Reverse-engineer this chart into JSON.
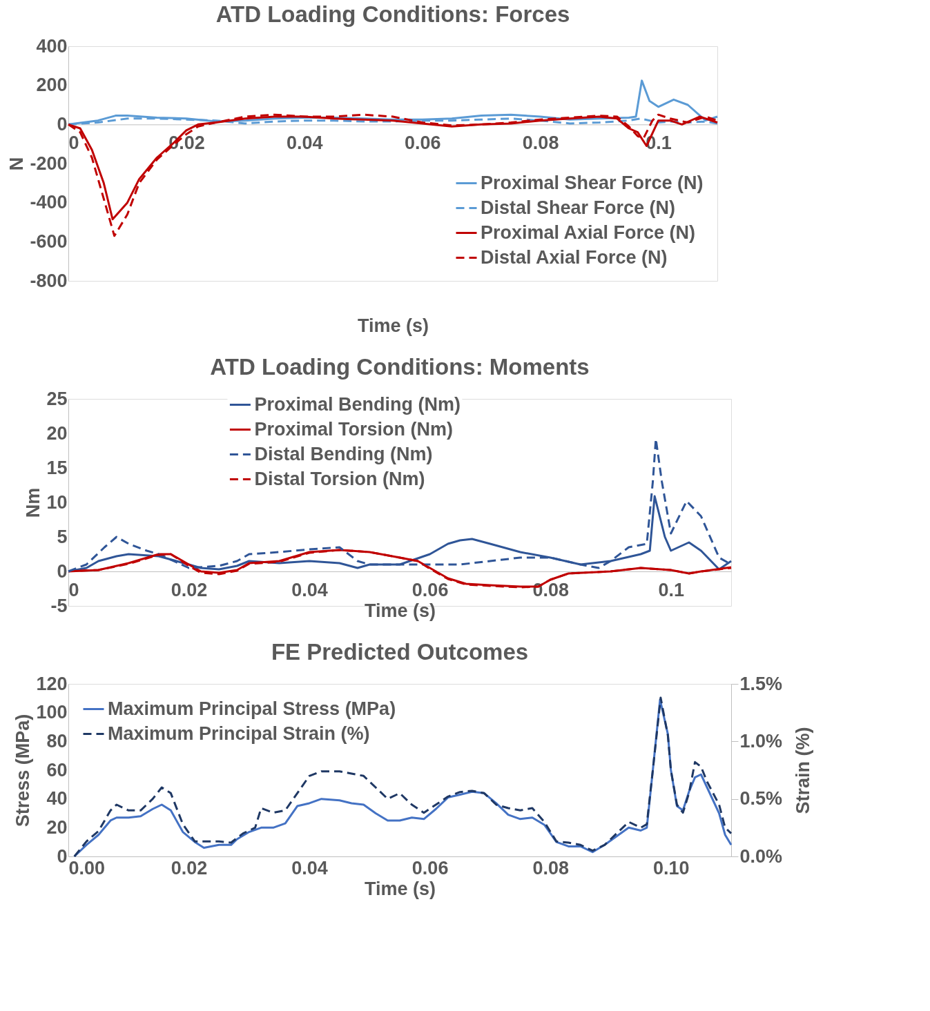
{
  "chart_data": [
    {
      "type": "line",
      "title": "ATD Loading Conditions: Forces",
      "xlabel": "Time (s)",
      "ylabel": "N",
      "xlim": [
        0,
        0.11
      ],
      "xticks": [
        0,
        0.02,
        0.04,
        0.06,
        0.08,
        0.1
      ],
      "ylim": [
        -800,
        400
      ],
      "yticks": [
        -800,
        -600,
        -400,
        -200,
        0,
        200,
        400
      ],
      "legend": "bottom right",
      "series": [
        {
          "name": "Proximal Shear Force (N)",
          "color": "#5b9bd5",
          "line_style": "solid",
          "x": [
            0,
            0.005,
            0.008,
            0.01,
            0.015,
            0.02,
            0.025,
            0.03,
            0.035,
            0.04,
            0.045,
            0.05,
            0.055,
            0.06,
            0.065,
            0.07,
            0.075,
            0.08,
            0.085,
            0.09,
            0.095,
            0.0962,
            0.0972,
            0.0985,
            0.1,
            0.1026,
            0.105,
            0.108,
            0.11
          ],
          "values": [
            0,
            20,
            45,
            45,
            35,
            30,
            15,
            20,
            30,
            35,
            35,
            30,
            25,
            25,
            30,
            45,
            50,
            40,
            25,
            30,
            35,
            40,
            224,
            120,
            90,
            127,
            100,
            20,
            40
          ]
        },
        {
          "name": "Distal Shear Force (N)",
          "color": "#5b9bd5",
          "line_style": "dashed",
          "x": [
            0,
            0.005,
            0.01,
            0.015,
            0.02,
            0.025,
            0.03,
            0.035,
            0.04,
            0.045,
            0.05,
            0.055,
            0.06,
            0.065,
            0.07,
            0.075,
            0.08,
            0.085,
            0.09,
            0.095,
            0.097,
            0.1,
            0.102,
            0.105,
            0.108,
            0.11
          ],
          "values": [
            0,
            10,
            30,
            30,
            25,
            20,
            5,
            15,
            20,
            20,
            15,
            15,
            20,
            20,
            25,
            30,
            20,
            5,
            10,
            20,
            30,
            10,
            15,
            10,
            15,
            5
          ]
        },
        {
          "name": "Proximal Axial Force (N)",
          "color": "#c00000",
          "line_style": "solid",
          "x": [
            0,
            0.002,
            0.004,
            0.006,
            0.0075,
            0.01,
            0.012,
            0.015,
            0.018,
            0.02,
            0.022,
            0.025,
            0.03,
            0.035,
            0.04,
            0.045,
            0.05,
            0.055,
            0.06,
            0.065,
            0.07,
            0.075,
            0.08,
            0.085,
            0.09,
            0.093,
            0.095,
            0.0965,
            0.098,
            0.1,
            0.102,
            0.104,
            0.107,
            0.11
          ],
          "values": [
            0,
            -20,
            -130,
            -300,
            -485,
            -400,
            -280,
            -170,
            -90,
            -30,
            0,
            10,
            30,
            40,
            40,
            30,
            25,
            20,
            5,
            -10,
            0,
            5,
            20,
            30,
            40,
            30,
            -20,
            -40,
            -110,
            20,
            20,
            0,
            40,
            10
          ]
        },
        {
          "name": "Distal Axial Force (N)",
          "color": "#c00000",
          "line_style": "dashed",
          "x": [
            0,
            0.002,
            0.004,
            0.006,
            0.0078,
            0.01,
            0.012,
            0.015,
            0.018,
            0.02,
            0.022,
            0.025,
            0.03,
            0.035,
            0.04,
            0.045,
            0.05,
            0.055,
            0.06,
            0.065,
            0.07,
            0.075,
            0.08,
            0.085,
            0.09,
            0.093,
            0.095,
            0.0965,
            0.0975,
            0.099,
            0.1,
            0.102,
            0.105,
            0.108,
            0.11
          ],
          "values": [
            0,
            -40,
            -170,
            -380,
            -570,
            -460,
            -300,
            -180,
            -100,
            -50,
            -10,
            10,
            40,
            50,
            40,
            40,
            50,
            40,
            10,
            -5,
            0,
            10,
            25,
            35,
            45,
            40,
            -10,
            -60,
            -70,
            20,
            50,
            30,
            10,
            40,
            20
          ]
        }
      ]
    },
    {
      "type": "line",
      "title": "ATD Loading Conditions: Moments",
      "xlabel": "Time (s)",
      "ylabel": "Nm",
      "xlim": [
        0,
        0.11
      ],
      "xticks": [
        0,
        0.02,
        0.04,
        0.06,
        0.08,
        0.1
      ],
      "ylim": [
        -5,
        25
      ],
      "yticks": [
        -5,
        0,
        5,
        10,
        15,
        20,
        25
      ],
      "legend": "top",
      "series": [
        {
          "name": "Proximal Bending (Nm)",
          "color": "#2f5597",
          "line_style": "solid",
          "x": [
            0,
            0.003,
            0.005,
            0.008,
            0.01,
            0.015,
            0.02,
            0.022,
            0.025,
            0.028,
            0.03,
            0.035,
            0.04,
            0.045,
            0.048,
            0.05,
            0.055,
            0.06,
            0.063,
            0.065,
            0.067,
            0.07,
            0.075,
            0.08,
            0.085,
            0.09,
            0.095,
            0.0965,
            0.0973,
            0.099,
            0.1,
            0.103,
            0.105,
            0.108,
            0.11
          ],
          "values": [
            0,
            0.5,
            1.5,
            2.2,
            2.5,
            2.2,
            1,
            0.5,
            0.3,
            0.8,
            1.5,
            1.2,
            1.5,
            1.2,
            0.5,
            1,
            1,
            2.5,
            4,
            4.5,
            4.7,
            4,
            2.8,
            2,
            1,
            1.5,
            2.5,
            3,
            10.9,
            5,
            3,
            4.2,
            3,
            0.3,
            1.5
          ]
        },
        {
          "name": "Proximal Torsion (Nm)",
          "color": "#c00000",
          "line_style": "solid",
          "x": [
            0,
            0.005,
            0.01,
            0.015,
            0.017,
            0.02,
            0.022,
            0.025,
            0.028,
            0.03,
            0.035,
            0.04,
            0.045,
            0.05,
            0.055,
            0.058,
            0.06,
            0.063,
            0.066,
            0.07,
            0.075,
            0.078,
            0.08,
            0.083,
            0.09,
            0.095,
            0.1,
            0.103,
            0.105,
            0.11
          ],
          "values": [
            0,
            0.2,
            1.2,
            2.5,
            2.5,
            1,
            0,
            -0.2,
            0.2,
            1.2,
            1.5,
            2.8,
            3.1,
            2.8,
            2,
            1.5,
            0.5,
            -1,
            -1.8,
            -2,
            -2.2,
            -2.2,
            -1.2,
            -0.3,
            0,
            0.5,
            0.2,
            -0.3,
            0,
            0.6
          ]
        },
        {
          "name": "Distal Bending  (Nm)",
          "color": "#2f5597",
          "line_style": "dashed",
          "x": [
            0,
            0.003,
            0.006,
            0.008,
            0.01,
            0.013,
            0.015,
            0.02,
            0.025,
            0.028,
            0.03,
            0.035,
            0.04,
            0.045,
            0.048,
            0.05,
            0.055,
            0.06,
            0.065,
            0.07,
            0.075,
            0.08,
            0.085,
            0.088,
            0.09,
            0.093,
            0.096,
            0.097,
            0.0975,
            0.0985,
            0.1,
            0.1026,
            0.105,
            0.108,
            0.11
          ],
          "values": [
            0,
            1,
            3.5,
            5,
            4,
            3,
            2.5,
            0.5,
            0.8,
            1.5,
            2.5,
            2.8,
            3.2,
            3.5,
            1.5,
            1,
            1,
            1,
            1,
            1.5,
            2,
            2,
            1,
            0.5,
            1.5,
            3.5,
            4,
            13,
            19.2,
            13,
            5.5,
            10.2,
            8,
            2,
            1
          ]
        },
        {
          "name": "Distal Torsion (Nm)",
          "color": "#c00000",
          "line_style": "dashed",
          "x": [
            0.002,
            0.005,
            0.01,
            0.015,
            0.017,
            0.02,
            0.022,
            0.025,
            0.028,
            0.03,
            0.035,
            0.04,
            0.045,
            0.05,
            0.055,
            0.058,
            0.06,
            0.063,
            0.066,
            0.07,
            0.075,
            0.078,
            0.08,
            0.083,
            0.09,
            0.095,
            0.1,
            0.103,
            0.105,
            0.11
          ],
          "values": [
            0.1,
            0.2,
            1.1,
            2.4,
            2.5,
            0.8,
            -0.2,
            -0.4,
            0.1,
            1.1,
            1.4,
            2.7,
            3.1,
            2.8,
            2,
            1.5,
            0.4,
            -1.1,
            -1.9,
            -2.1,
            -2.3,
            -2.2,
            -1.2,
            -0.3,
            0,
            0.5,
            0.2,
            -0.3,
            0,
            0.5
          ]
        }
      ]
    },
    {
      "type": "line",
      "title": "FE Predicted Outcomes",
      "xlabel": "Time (s)",
      "ylabel": "Stress (MPa)",
      "y2label": "Strain (%)",
      "xlim": [
        0,
        0.11
      ],
      "xticks": [
        {
          "value": 0,
          "label": "0.00"
        },
        {
          "value": 0.02,
          "label": "0.02"
        },
        {
          "value": 0.04,
          "label": "0.04"
        },
        {
          "value": 0.06,
          "label": "0.06"
        },
        {
          "value": 0.08,
          "label": "0.08"
        },
        {
          "value": 0.1,
          "label": "0.10"
        }
      ],
      "ylim": [
        0,
        120
      ],
      "yticks": [
        0,
        20,
        40,
        60,
        80,
        100,
        120
      ],
      "y2lim": [
        0,
        1.5
      ],
      "y2ticks": [
        {
          "value": 0,
          "label": "0.0%"
        },
        {
          "value": 0.5,
          "label": "0.5%"
        },
        {
          "value": 1,
          "label": "1.0%"
        },
        {
          "value": 1.5,
          "label": "1.5%"
        }
      ],
      "legend": "top left",
      "series": [
        {
          "name": "Maximum Principal Stress (MPa)",
          "color": "#4472c4",
          "line_style": "solid",
          "x": [
            0.001,
            0.003,
            0.005,
            0.007,
            0.008,
            0.01,
            0.012,
            0.014,
            0.0155,
            0.017,
            0.019,
            0.021,
            0.0225,
            0.025,
            0.027,
            0.028,
            0.03,
            0.032,
            0.034,
            0.036,
            0.038,
            0.04,
            0.042,
            0.045,
            0.047,
            0.049,
            0.051,
            0.053,
            0.055,
            0.057,
            0.059,
            0.061,
            0.063,
            0.065,
            0.067,
            0.069,
            0.071,
            0.073,
            0.075,
            0.077,
            0.079,
            0.081,
            0.083,
            0.085,
            0.087,
            0.089,
            0.091,
            0.093,
            0.095,
            0.096,
            0.097,
            0.0982,
            0.0995,
            0.1,
            0.101,
            0.102,
            0.103,
            0.104,
            0.105,
            0.106,
            0.108,
            0.109,
            0.11
          ],
          "values": [
            0,
            8,
            15,
            25,
            27,
            27,
            28,
            33,
            36,
            32,
            17,
            10,
            6,
            8,
            8,
            12,
            17,
            20,
            20,
            23,
            35,
            37,
            40,
            39,
            37,
            36,
            30,
            25,
            25,
            27,
            26,
            33,
            41,
            43,
            45,
            44,
            37,
            29,
            26,
            27,
            22,
            10,
            7,
            7,
            3,
            8,
            14,
            20,
            18,
            20,
            60,
            109,
            85,
            60,
            35,
            32,
            45,
            55,
            57,
            48,
            30,
            15,
            8
          ]
        },
        {
          "name": "Maximum Principal Strain (%)",
          "color": "#1f3864",
          "line_style": "dashed",
          "axis": "y2",
          "x": [
            0.001,
            0.003,
            0.005,
            0.007,
            0.008,
            0.01,
            0.012,
            0.014,
            0.0155,
            0.017,
            0.019,
            0.021,
            0.023,
            0.025,
            0.027,
            0.029,
            0.031,
            0.032,
            0.034,
            0.036,
            0.038,
            0.04,
            0.042,
            0.045,
            0.047,
            0.049,
            0.051,
            0.053,
            0.055,
            0.057,
            0.059,
            0.061,
            0.063,
            0.065,
            0.067,
            0.069,
            0.071,
            0.073,
            0.075,
            0.077,
            0.079,
            0.081,
            0.083,
            0.085,
            0.087,
            0.089,
            0.091,
            0.093,
            0.095,
            0.096,
            0.097,
            0.0983,
            0.0995,
            0.1,
            0.101,
            0.102,
            0.103,
            0.104,
            0.105,
            0.106,
            0.108,
            0.109,
            0.11
          ],
          "values": [
            0,
            0.13,
            0.22,
            0.4,
            0.45,
            0.4,
            0.4,
            0.5,
            0.6,
            0.55,
            0.28,
            0.13,
            0.13,
            0.13,
            0.12,
            0.2,
            0.25,
            0.42,
            0.38,
            0.4,
            0.55,
            0.7,
            0.74,
            0.74,
            0.72,
            0.7,
            0.6,
            0.5,
            0.55,
            0.45,
            0.38,
            0.45,
            0.52,
            0.56,
            0.57,
            0.55,
            0.45,
            0.42,
            0.4,
            0.42,
            0.3,
            0.13,
            0.12,
            0.1,
            0.05,
            0.1,
            0.2,
            0.3,
            0.25,
            0.28,
            0.75,
            1.38,
            1.05,
            0.75,
            0.45,
            0.38,
            0.55,
            0.82,
            0.78,
            0.65,
            0.45,
            0.25,
            0.2
          ]
        }
      ]
    }
  ]
}
